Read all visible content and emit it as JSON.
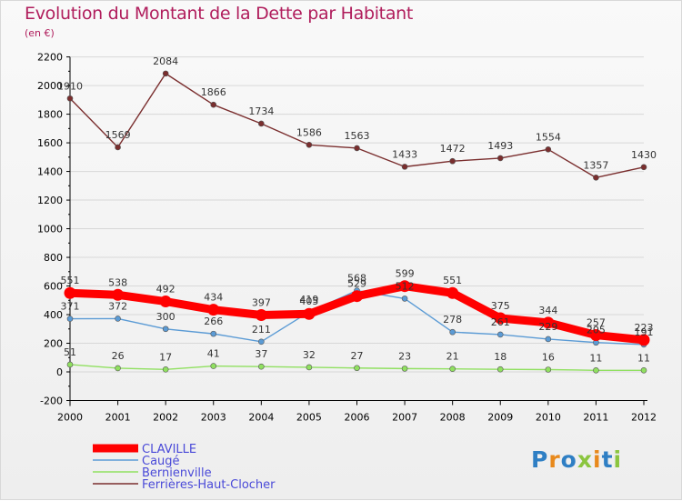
{
  "title": "Evolution du Montant de la Dette par Habitant",
  "subtitle": "(en €)",
  "logo": {
    "text": "Proxiti",
    "colors": [
      "#2f7fc4",
      "#e8891c",
      "#2f7fc4",
      "#8bc53f",
      "#e8891c",
      "#2f7fc4",
      "#8bc53f"
    ]
  },
  "colors": {
    "title": "#b01d5c",
    "axis": "#000000",
    "grid": "#d8d8d8",
    "legend_text": "#4a4ad8",
    "label": "#333333"
  },
  "chart_data": {
    "type": "line",
    "x": [
      "2000",
      "2001",
      "2002",
      "2003",
      "2004",
      "2005",
      "2006",
      "2007",
      "2008",
      "2009",
      "2010",
      "2011",
      "2012"
    ],
    "ylim": [
      -200,
      2200
    ],
    "yticks": [
      "-200",
      "0",
      "200",
      "400",
      "600",
      "800",
      "1000",
      "1200",
      "1400",
      "1600",
      "1800",
      "2000",
      "2200"
    ],
    "ytick_values": [
      -200,
      0,
      200,
      400,
      600,
      800,
      1000,
      1200,
      1400,
      1600,
      1800,
      2000,
      2200
    ],
    "grid": "horizontal",
    "legend_position": "bottom-left",
    "series": [
      {
        "name": "CLAVILLE",
        "color": "#ff0000",
        "style": "thick",
        "values": [
          551,
          538,
          492,
          434,
          397,
          405,
          529,
          599,
          551,
          375,
          344,
          257,
          223
        ],
        "labels": [
          "551",
          "538",
          "492",
          "434",
          "397",
          "405",
          "529",
          "599",
          "551",
          "375",
          "344",
          "257",
          "223"
        ]
      },
      {
        "name": "Caugé",
        "color": "#5b9bd5",
        "style": "thin",
        "values": [
          371,
          372,
          300,
          266,
          211,
          419,
          568,
          512,
          278,
          261,
          229,
          205,
          191
        ],
        "labels": [
          "371",
          "372",
          "300",
          "266",
          "211",
          "419",
          "568",
          "512",
          "278",
          "261",
          "229",
          "205",
          "191"
        ]
      },
      {
        "name": "Bernienville",
        "color": "#90e060",
        "style": "thin",
        "values": [
          51,
          26,
          17,
          41,
          37,
          32,
          27,
          23,
          21,
          18,
          16,
          11,
          11
        ],
        "labels": [
          "51",
          "26",
          "17",
          "41",
          "37",
          "32",
          "27",
          "23",
          "21",
          "18",
          "16",
          "11",
          "11"
        ]
      },
      {
        "name": "Ferrières-Haut-Clocher",
        "color": "#7a2e2e",
        "style": "thin",
        "values": [
          1910,
          1569,
          2084,
          1866,
          1734,
          1586,
          1563,
          1433,
          1472,
          1493,
          1554,
          1357,
          1430
        ],
        "labels": [
          "1910",
          "1569",
          "2084",
          "1866",
          "1734",
          "1586",
          "1563",
          "1433",
          "1472",
          "1493",
          "1554",
          "1357",
          "1430"
        ]
      }
    ]
  }
}
